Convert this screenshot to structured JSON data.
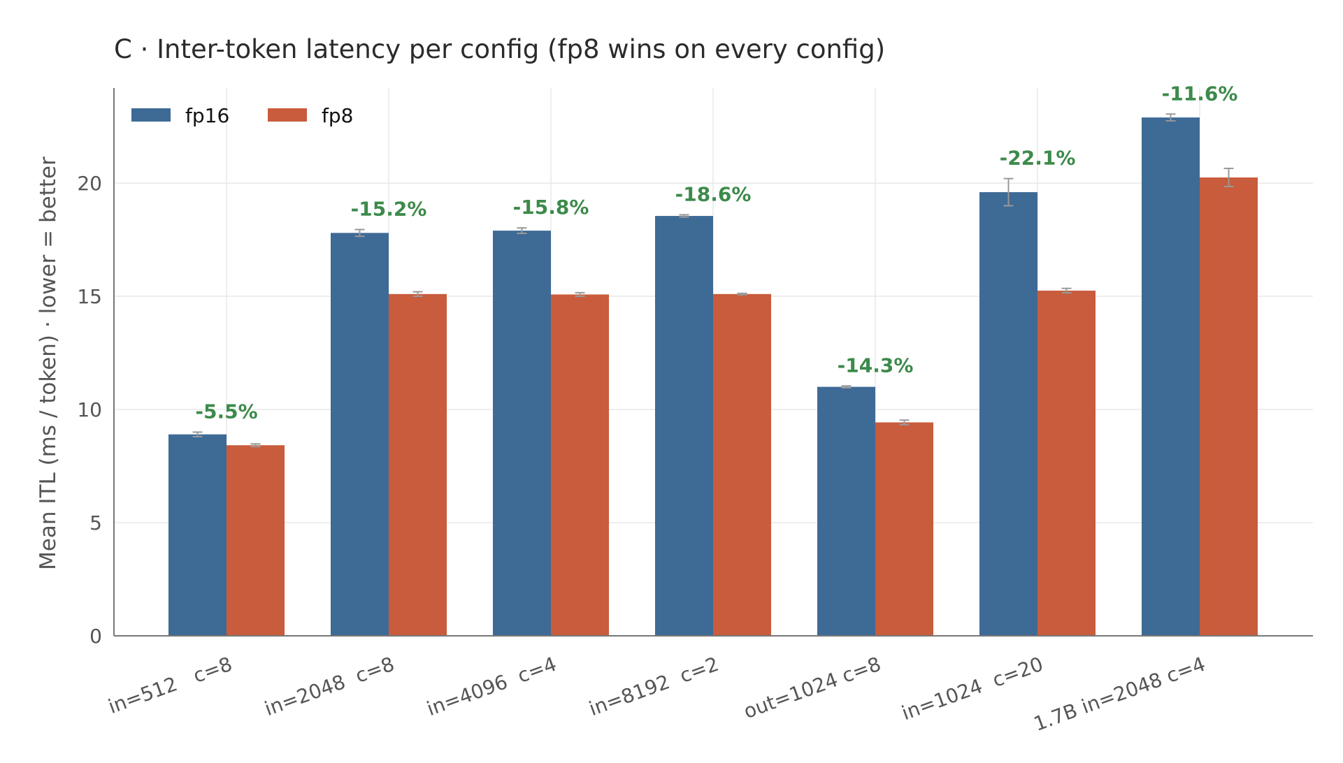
{
  "chart_data": {
    "type": "bar",
    "title": "C · Inter-token latency per config  (fp8 wins on every config)",
    "ylabel": "Mean ITL (ms / token)  ·  lower = better",
    "xlabel": "",
    "ylim": [
      0,
      24.2
    ],
    "yticks": [
      "0",
      "5",
      "10",
      "15",
      "20"
    ],
    "grid": true,
    "legend_position": "top-left",
    "categories": [
      "in=512   c=8",
      "in=2048  c=8",
      "in=4096  c=4",
      "in=8192  c=2",
      "out=1024 c=8",
      "in=1024  c=20",
      "1.7B in=2048 c=4"
    ],
    "series": [
      {
        "name": "fp16",
        "color": "#3e6a96",
        "values": [
          8.9,
          17.8,
          17.9,
          18.55,
          11.0,
          19.6,
          22.9
        ],
        "err": [
          0.1,
          0.15,
          0.12,
          0.05,
          0.04,
          0.6,
          0.15
        ]
      },
      {
        "name": "fp8",
        "color": "#c85c3c",
        "values": [
          8.42,
          15.1,
          15.08,
          15.1,
          9.43,
          15.25,
          20.25
        ],
        "err": [
          0.06,
          0.1,
          0.08,
          0.03,
          0.1,
          0.1,
          0.4
        ]
      }
    ],
    "annotations": [
      "-5.5%",
      "-15.2%",
      "-15.8%",
      "-18.6%",
      "-14.3%",
      "-22.1%",
      "-11.6%"
    ],
    "annotation_color": "#3d8a4b",
    "grid_color": "#e8e8e8",
    "error_bar_color": "#999999",
    "axis_color": "#777777"
  }
}
